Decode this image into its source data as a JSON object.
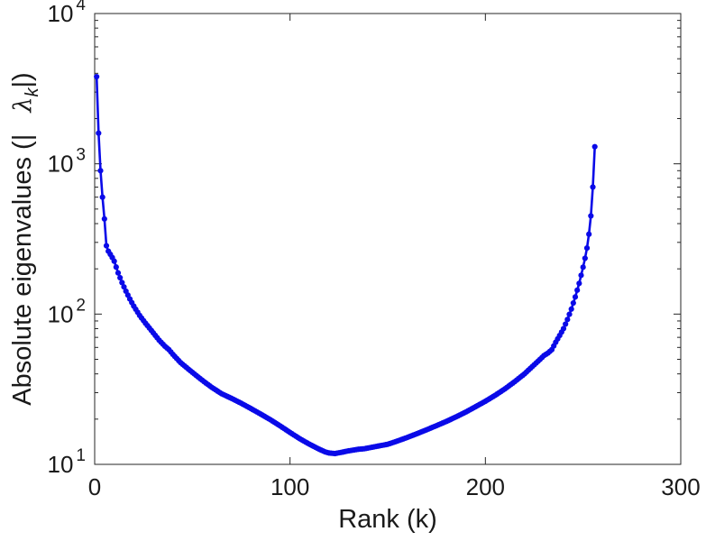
{
  "chart_data": {
    "type": "line",
    "title": "",
    "xlabel": "Rank (k)",
    "ylabel_prefix": "Absolute eigenvalues (|   ",
    "ylabel_symbol": "λ",
    "ylabel_subscript": "k",
    "ylabel_suffix": "|)",
    "yscale": "log",
    "grid": false,
    "legend": "none",
    "xlim": [
      0,
      300
    ],
    "ylim": [
      10,
      10000
    ],
    "x_ticks": [
      0,
      100,
      200,
      300
    ],
    "y_tick_base": "10",
    "y_tick_exponents": [
      1,
      2,
      3,
      4
    ],
    "line_color": "#0a0ae8",
    "marker_color": "#0a0ae8",
    "marker": "circle",
    "axis_color": "#262626",
    "text_color": "#1a1a1a",
    "series": [
      {
        "name": "absolute eigenvalues |lambda_k| vs rank k",
        "k_range": [
          1,
          256
        ],
        "control_points": [
          [
            1,
            3800
          ],
          [
            2,
            1600
          ],
          [
            3,
            900
          ],
          [
            4,
            600
          ],
          [
            5,
            430
          ],
          [
            6,
            285
          ],
          [
            7,
            262
          ],
          [
            8,
            250
          ],
          [
            9,
            238
          ],
          [
            10,
            225
          ],
          [
            12,
            188
          ],
          [
            14,
            162
          ],
          [
            16,
            142
          ],
          [
            18,
            126
          ],
          [
            20,
            113
          ],
          [
            23,
            98
          ],
          [
            26,
            87
          ],
          [
            30,
            75
          ],
          [
            33,
            67
          ],
          [
            36,
            61
          ],
          [
            38,
            58
          ],
          [
            40,
            54
          ],
          [
            44,
            47.5
          ],
          [
            48,
            43
          ],
          [
            52,
            39
          ],
          [
            56,
            35.5
          ],
          [
            60,
            32.5
          ],
          [
            65,
            29.5
          ],
          [
            70,
            27.5
          ],
          [
            75,
            25.5
          ],
          [
            80,
            23.5
          ],
          [
            85,
            21.6
          ],
          [
            90,
            19.8
          ],
          [
            95,
            18.0
          ],
          [
            100,
            16.3
          ],
          [
            105,
            14.8
          ],
          [
            110,
            13.6
          ],
          [
            115,
            12.6
          ],
          [
            118,
            12.1
          ],
          [
            120,
            11.9
          ],
          [
            123,
            11.8
          ],
          [
            126,
            12.0
          ],
          [
            130,
            12.3
          ],
          [
            135,
            12.6
          ],
          [
            138,
            12.7
          ],
          [
            142,
            13.0
          ],
          [
            146,
            13.3
          ],
          [
            150,
            13.6
          ],
          [
            155,
            14.3
          ],
          [
            160,
            15.1
          ],
          [
            165,
            16.0
          ],
          [
            170,
            17.0
          ],
          [
            175,
            18.1
          ],
          [
            180,
            19.3
          ],
          [
            185,
            20.7
          ],
          [
            190,
            22.3
          ],
          [
            195,
            24.2
          ],
          [
            200,
            26.3
          ],
          [
            205,
            28.8
          ],
          [
            210,
            31.8
          ],
          [
            215,
            35.5
          ],
          [
            220,
            40
          ],
          [
            225,
            46
          ],
          [
            228,
            50
          ],
          [
            230,
            53
          ],
          [
            232,
            55
          ],
          [
            234,
            58
          ],
          [
            236,
            65
          ],
          [
            238,
            72
          ],
          [
            240,
            80
          ],
          [
            242,
            92
          ],
          [
            244,
            108
          ],
          [
            246,
            130
          ],
          [
            248,
            160
          ],
          [
            250,
            205
          ],
          [
            251,
            235
          ],
          [
            252,
            275
          ],
          [
            253,
            340
          ],
          [
            254,
            450
          ],
          [
            255,
            700
          ],
          [
            256,
            1300
          ]
        ]
      }
    ]
  }
}
